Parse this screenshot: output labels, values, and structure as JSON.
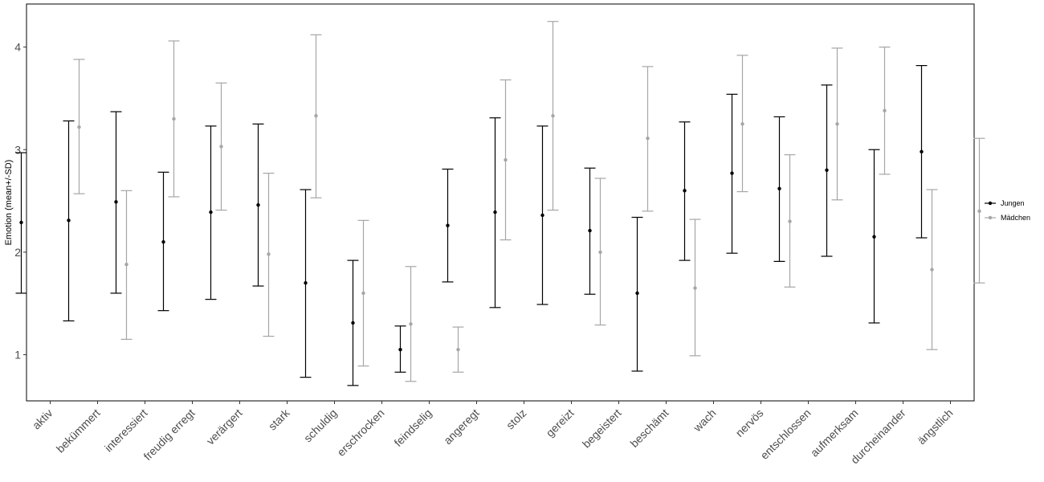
{
  "chart_data": {
    "type": "errorbar",
    "ylabel": "Emotion (mean+/-SD)",
    "xlabel": "",
    "ylim": [
      0.55,
      4.42
    ],
    "yticks": [
      1,
      2,
      3,
      4
    ],
    "grid": false,
    "legend_position": "right",
    "categories": [
      "aktiv",
      "bekümmert",
      "interessiert",
      "freudig erregt",
      "verärgert",
      "stark",
      "schuldig",
      "erschrocken",
      "feindselig",
      "angeregt",
      "stolz",
      "gereizt",
      "begeistert",
      "beschämt",
      "wach",
      "nervös",
      "entschlossen",
      "aufmerksam",
      "durcheinander",
      "ängstlich"
    ],
    "series": [
      {
        "name": "Jungen",
        "color": "#000000",
        "mean": [
          2.29,
          2.31,
          2.49,
          2.1,
          2.39,
          2.46,
          1.7,
          1.31,
          1.05,
          2.26,
          2.39,
          2.36,
          2.21,
          1.6,
          2.6,
          2.77,
          2.62,
          2.8,
          2.15,
          2.98
        ],
        "lower": [
          1.6,
          1.33,
          1.6,
          1.43,
          1.54,
          1.67,
          0.78,
          0.7,
          0.83,
          1.71,
          1.46,
          1.49,
          1.59,
          0.84,
          1.92,
          1.99,
          1.91,
          1.96,
          1.31,
          2.14
        ],
        "upper": [
          2.97,
          3.28,
          3.37,
          2.78,
          3.23,
          3.25,
          2.61,
          1.92,
          1.28,
          2.81,
          3.31,
          3.23,
          2.82,
          2.34,
          3.27,
          3.54,
          3.32,
          3.63,
          3.0,
          3.82
        ]
      },
      {
        "name": "Mädchen",
        "color": "#a6a6a6",
        "mean": [
          3.22,
          1.88,
          3.3,
          3.03,
          1.98,
          3.33,
          1.6,
          1.3,
          1.05,
          2.9,
          3.33,
          2.0,
          3.11,
          1.65,
          3.25,
          2.3,
          3.25,
          3.38,
          1.83,
          2.4
        ],
        "lower": [
          2.57,
          1.15,
          2.54,
          2.41,
          1.18,
          2.53,
          0.89,
          0.74,
          0.83,
          2.12,
          2.41,
          1.29,
          2.4,
          0.99,
          2.59,
          1.66,
          2.51,
          2.76,
          1.05,
          1.7
        ],
        "upper": [
          3.88,
          2.6,
          4.06,
          3.65,
          2.77,
          4.12,
          2.31,
          1.86,
          1.27,
          3.68,
          4.25,
          2.72,
          3.81,
          2.32,
          3.92,
          2.95,
          3.99,
          4.0,
          2.61,
          3.11
        ]
      }
    ]
  }
}
